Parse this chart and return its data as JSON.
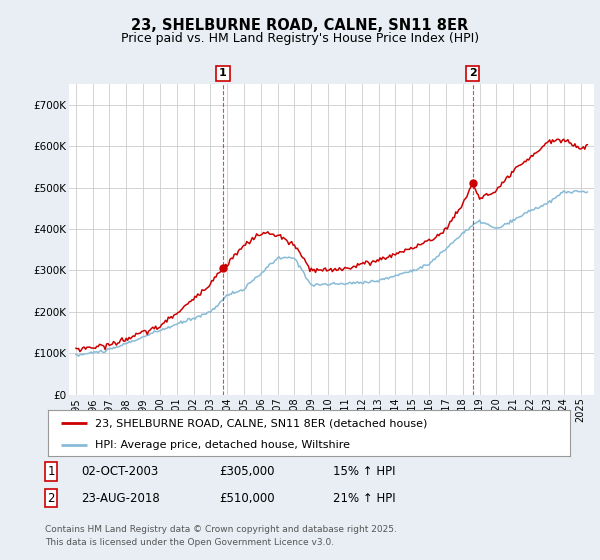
{
  "title": "23, SHELBURNE ROAD, CALNE, SN11 8ER",
  "subtitle": "Price paid vs. HM Land Registry's House Price Index (HPI)",
  "ylim": [
    0,
    750000
  ],
  "yticks": [
    0,
    100000,
    200000,
    300000,
    400000,
    500000,
    600000,
    700000
  ],
  "ytick_labels": [
    "£0",
    "£100K",
    "£200K",
    "£300K",
    "£400K",
    "£500K",
    "£600K",
    "£700K"
  ],
  "red_color": "#cc0000",
  "blue_color": "#88bbd8",
  "background_color": "#e8eef4",
  "plot_bg_color": "#ffffff",
  "grid_color": "#cccccc",
  "legend_label_red": "23, SHELBURNE ROAD, CALNE, SN11 8ER (detached house)",
  "legend_label_blue": "HPI: Average price, detached house, Wiltshire",
  "copyright": "Contains HM Land Registry data © Crown copyright and database right 2025.\nThis data is licensed under the Open Government Licence v3.0.",
  "title_fontsize": 10.5,
  "subtitle_fontsize": 9,
  "tick_fontsize": 7.5,
  "legend_fontsize": 8,
  "footnote_fontsize": 8.5,
  "copyright_fontsize": 6.5,
  "hpi_anchors_x": [
    1995,
    1997,
    2000,
    2003,
    2004,
    2005,
    2007,
    2008,
    2009,
    2011,
    2013,
    2015,
    2016,
    2018,
    2019,
    2020,
    2021,
    2022,
    2023,
    2024,
    2025.5
  ],
  "hpi_anchors_y": [
    95000,
    108000,
    155000,
    200000,
    240000,
    255000,
    330000,
    330000,
    265000,
    268000,
    275000,
    300000,
    315000,
    390000,
    420000,
    400000,
    420000,
    445000,
    460000,
    490000,
    490000
  ],
  "red_anchors_x": [
    1995,
    1997,
    2000,
    2002,
    2003.0,
    2003.75,
    2005,
    2006,
    2007,
    2008,
    2009,
    2010,
    2011,
    2013,
    2015,
    2016,
    2017,
    2018,
    2018.58,
    2019,
    2020,
    2021,
    2022,
    2023,
    2024,
    2025,
    2025.5
  ],
  "red_anchors_y": [
    110000,
    120000,
    165000,
    230000,
    270000,
    305000,
    360000,
    390000,
    385000,
    360000,
    300000,
    300000,
    305000,
    325000,
    355000,
    370000,
    400000,
    460000,
    510000,
    475000,
    490000,
    540000,
    570000,
    610000,
    615000,
    595000,
    600000
  ],
  "marker1_x": 2003.75,
  "marker1_y": 305000,
  "marker2_x": 2018.58,
  "marker2_y": 510000,
  "xmin": 1994.6,
  "xmax": 2025.8
}
